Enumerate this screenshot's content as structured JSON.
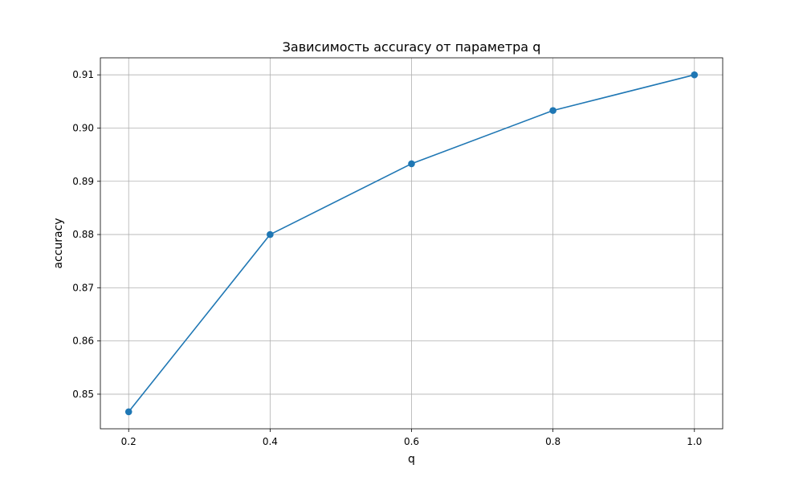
{
  "chart_data": {
    "type": "line",
    "title": "Зависимость accuracy от параметра q",
    "xlabel": "q",
    "ylabel": "accuracy",
    "x": [
      0.2,
      0.4,
      0.6,
      0.8,
      1.0
    ],
    "series": [
      {
        "values": [
          0.8467,
          0.88,
          0.8933,
          0.9033,
          0.91
        ]
      }
    ],
    "xlim": [
      0.16,
      1.04
    ],
    "ylim": [
      0.8435,
      0.9132
    ],
    "xticks": [
      0.2,
      0.4,
      0.6,
      0.8,
      1.0
    ],
    "xtick_labels": [
      "0.2",
      "0.4",
      "0.6",
      "0.8",
      "1.0"
    ],
    "yticks": [
      0.85,
      0.86,
      0.87,
      0.88,
      0.89,
      0.9,
      0.91
    ],
    "ytick_labels": [
      "0.85",
      "0.86",
      "0.87",
      "0.88",
      "0.89",
      "0.90",
      "0.91"
    ],
    "grid": true,
    "markers": true,
    "color": "#1f77b4",
    "grid_color": "#b0b0b0"
  }
}
